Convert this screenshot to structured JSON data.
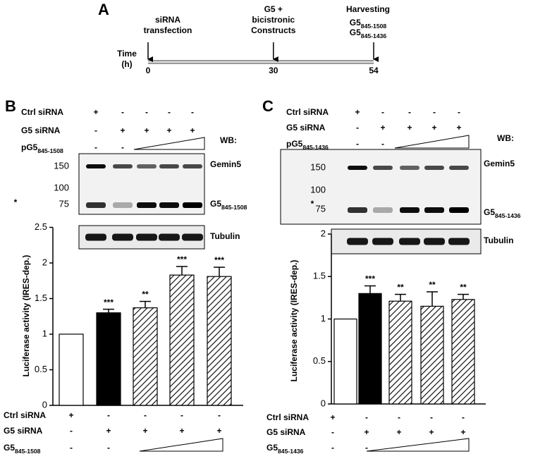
{
  "panel_a": {
    "label": "A",
    "time_label": [
      "Time",
      "(h)"
    ],
    "events": [
      {
        "label": [
          "siRNA",
          "transfection"
        ],
        "time": 0
      },
      {
        "label": [
          "G5 +",
          "bicistronic",
          "Constructs"
        ],
        "time": 30
      },
      {
        "label": [
          "Harvesting"
        ],
        "time": 54
      }
    ],
    "constructs": [
      {
        "name": "G5",
        "sub": "845-1508"
      },
      {
        "name": "G5",
        "sub": "845-1436"
      }
    ],
    "xlim": [
      0,
      54
    ],
    "xticks": [
      0,
      30,
      54
    ]
  },
  "chart_data": [
    {
      "type": "bar",
      "panel": "B",
      "ylabel": "Luciferase activity (IRES-dep.)",
      "values": [
        1,
        1.3,
        1.37,
        1.83,
        1.81
      ],
      "errors": [
        0,
        0.05,
        0.09,
        0.12,
        0.13
      ],
      "significance": [
        null,
        "***",
        "**",
        "***",
        "***"
      ],
      "fills": [
        "white",
        "black",
        "hatch",
        "hatch",
        "hatch"
      ],
      "ylim": [
        0,
        2.5
      ],
      "yticks": [
        0,
        0.5,
        1,
        1.5,
        2,
        2.5
      ],
      "blot": {
        "conditions": [
          {
            "label": "Ctrl siRNA",
            "signs": [
              "+",
              "-",
              "-",
              "-",
              "-"
            ]
          },
          {
            "label": "G5 siRNA",
            "signs": [
              "-",
              "+",
              "+",
              "+",
              "+"
            ]
          },
          {
            "label": {
              "name": "pG5",
              "sub": "845-1508"
            },
            "signs": [
              "-",
              "-",
              null,
              null,
              null
            ]
          }
        ],
        "wb_label": "WB:",
        "markers": [
          150,
          100,
          75
        ],
        "asterisk": "*",
        "bands": [
          "Gemin5",
          {
            "name": "G5",
            "sub": "845-1508"
          },
          "Tubulin"
        ]
      },
      "table": [
        {
          "label": "Ctrl siRNA",
          "signs": [
            "+",
            "-",
            "-",
            "-",
            "-"
          ]
        },
        {
          "label": "G5 siRNA",
          "signs": [
            "-",
            "+",
            "+",
            "+",
            "+"
          ]
        },
        {
          "label": {
            "name": "G5",
            "sub": "845-1508"
          },
          "signs": [
            "-",
            "-",
            null,
            null,
            null
          ]
        }
      ]
    },
    {
      "type": "bar",
      "panel": "C",
      "ylabel": "Luciferase activity (IRES-dep.)",
      "values": [
        1,
        1.3,
        1.21,
        1.15,
        1.23
      ],
      "errors": [
        0,
        0.09,
        0.08,
        0.17,
        0.06
      ],
      "significance": [
        null,
        "***",
        "**",
        "**",
        "**"
      ],
      "fills": [
        "white",
        "black",
        "hatch",
        "hatch",
        "hatch"
      ],
      "ylim": [
        0,
        2
      ],
      "yticks": [
        0,
        0.5,
        1,
        1.5,
        2
      ],
      "blot": {
        "conditions": [
          {
            "label": "Ctrl siRNA",
            "signs": [
              "+",
              "-",
              "-",
              "-",
              "-"
            ]
          },
          {
            "label": "G5 siRNA",
            "signs": [
              "-",
              "+",
              "+",
              "+",
              "+"
            ]
          },
          {
            "label": {
              "name": "pG5",
              "sub": "845-1436"
            },
            "signs": [
              "-",
              "-",
              null,
              null,
              null
            ]
          }
        ],
        "wb_label": "WB:",
        "markers": [
          150,
          100,
          75
        ],
        "asterisk": "*",
        "bands": [
          "Gemin5",
          {
            "name": "G5",
            "sub": "845-1436"
          },
          "Tubulin"
        ]
      },
      "table": [
        {
          "label": "Ctrl siRNA",
          "signs": [
            "+",
            "-",
            "-",
            "-",
            "-"
          ]
        },
        {
          "label": "G5 siRNA",
          "signs": [
            "-",
            "+",
            "+",
            "+",
            "+"
          ]
        },
        {
          "label": {
            "name": "G5",
            "sub": "845-1436"
          },
          "signs": [
            "-",
            "-",
            null,
            null,
            null
          ]
        }
      ]
    }
  ]
}
